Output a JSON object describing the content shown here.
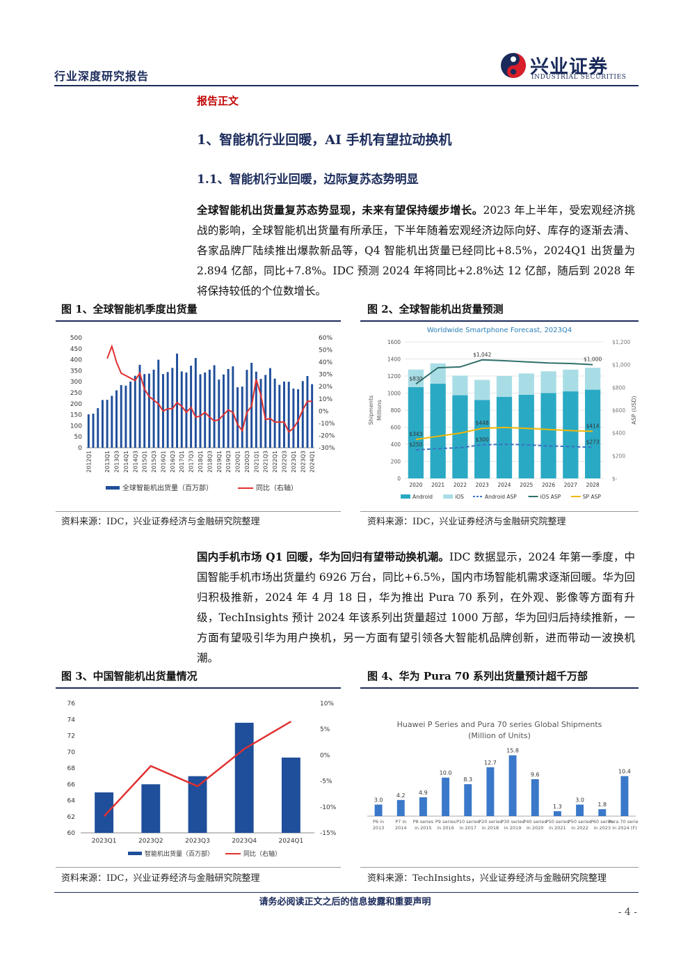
{
  "header": {
    "report_type": "行业深度研究报告",
    "logo_cn": "兴业证券",
    "logo_en": "INDUSTRIAL SECURITIES"
  },
  "section_label": "报告正文",
  "h1": "1、智能机行业回暖，AI 手机有望拉动换机",
  "h2": "1.1、智能机行业回暖，边际复苏态势明显",
  "para1": {
    "lead": "全球智能机出货量复苏态势显现，未来有望保持缓步增长。",
    "body": "2023 年上半年，受宏观经济挑战的影响，全球智能机出货量有所承压，下半年随着宏观经济边际向好、库存的逐渐去清、各家品牌厂陆续推出爆款新品等，Q4 智能机出货量已经同比+8.5%，2024Q1 出货量为 2.894 亿部，同比+7.8%。IDC 预测 2024 年将同比+2.8%达 12 亿部，随后到 2028 年将保持较低的个位数增长。"
  },
  "para2": {
    "lead": "国内手机市场 Q1 回暖，华为回归有望带动换机潮。",
    "body": "IDC 数据显示，2024 年第一季度，中国智能手机市场出货量约 6926 万台，同比+6.5%，国内市场智能机需求逐渐回暖。华为回归积极推新，2024 年 4 月 18 日，华为推出 Pura 70 系列，在外观、影像等方面有升级，TechInsights 预计 2024 年该系列出货量超过 1000 万部，华为回归后持续推新，一方面有望吸引华为用户换机，另一方面有望引领各大智能机品牌创新，进而带动一波换机潮。"
  },
  "figures": {
    "fig1": {
      "title": "图 1、全球智能机季度出货量",
      "source": "资料来源：IDC，兴业证券经济与金融研究院整理"
    },
    "fig2": {
      "title": "图 2、全球智能机出货量预测",
      "source": "资料来源：IDC，兴业证券经济与金融研究院整理"
    },
    "fig3": {
      "title": "图 3、中国智能机出货量情况",
      "source": "资料来源：IDC，兴业证券经济与金融研究院整理"
    },
    "fig4": {
      "title": "图 4、华为 Pura 70 系列出货量预计超千万部",
      "source": "资料来源：TechInsights，兴业证券经济与金融研究院整理"
    }
  },
  "footer": {
    "note": "请务必阅读正文之后的信息披露和重要声明",
    "page": "- 4 -"
  },
  "colors": {
    "navy": "#1a2a5a",
    "red": "#c00000",
    "bar_blue": "#1f4e9a",
    "line_red": "#e03030",
    "teal": "#2aa9c4",
    "light_teal": "#a9dde6",
    "bar2": "#3a78c9"
  },
  "chart_data": [
    {
      "id": "fig1",
      "type": "bar",
      "categories": [
        "2012Q1",
        "2012Q2",
        "2012Q3",
        "2012Q4",
        "2013Q1",
        "2013Q2",
        "2013Q3",
        "2013Q4",
        "2014Q1",
        "2014Q2",
        "2014Q3",
        "2014Q4",
        "2015Q1",
        "2015Q2",
        "2015Q3",
        "2015Q4",
        "2016Q1",
        "2016Q2",
        "2016Q3",
        "2016Q4",
        "2017Q1",
        "2017Q2",
        "2017Q3",
        "2017Q4",
        "2018Q1",
        "2018Q2",
        "2018Q3",
        "2018Q4",
        "2019Q1",
        "2019Q2",
        "2019Q3",
        "2019Q4",
        "2020Q1",
        "2020Q2",
        "2020Q3",
        "2020Q4",
        "2021Q1",
        "2021Q2",
        "2021Q3",
        "2021Q4",
        "2022Q1",
        "2022Q2",
        "2022Q3",
        "2022Q4",
        "2023Q1",
        "2023Q2",
        "2023Q3",
        "2023Q4",
        "2024Q1"
      ],
      "tick_labels": [
        "2012Q1",
        "2013Q1",
        "2013Q3",
        "2014Q1",
        "2014Q3",
        "2015Q1",
        "2015Q3",
        "2016Q1",
        "2016Q3",
        "2017Q1",
        "2017Q3",
        "2018Q1",
        "2018Q3",
        "2019Q1",
        "2019Q3",
        "2020Q1",
        "2020Q3",
        "2021Q1",
        "2021Q3",
        "2022Q1",
        "2022Q3",
        "2023Q1",
        "2023Q3",
        "2024Q1"
      ],
      "series": [
        {
          "name": "全球智能机出货量（百万部）",
          "axis": "left",
          "values": [
            152,
            155,
            180,
            217,
            218,
            236,
            261,
            285,
            282,
            301,
            327,
            377,
            335,
            337,
            355,
            400,
            335,
            344,
            363,
            428,
            347,
            342,
            373,
            408,
            334,
            342,
            355,
            375,
            310,
            333,
            358,
            370,
            275,
            278,
            354,
            386,
            346,
            313,
            331,
            362,
            314,
            286,
            301,
            300,
            269,
            266,
            303,
            326,
            289
          ]
        },
        {
          "name": "同比（右轴）",
          "axis": "right",
          "values": [
            null,
            null,
            null,
            null,
            43,
            53,
            40,
            31,
            29,
            27,
            25,
            31,
            18,
            12,
            9,
            6,
            0,
            2,
            2,
            7,
            4,
            -1,
            3,
            -5,
            -4,
            -1,
            -5,
            -8,
            -7,
            -3,
            1,
            -1,
            -11,
            -16,
            -1,
            4,
            26,
            13,
            -7,
            -6,
            -9,
            -9,
            -9,
            -17,
            -14,
            -8,
            1,
            8,
            8
          ]
        }
      ],
      "y_left": [
        0,
        500
      ],
      "y_right": [
        -30,
        60
      ],
      "y_left_ticks": [
        "0",
        "50",
        "100",
        "150",
        "200",
        "250",
        "300",
        "350",
        "400",
        "450",
        "500"
      ],
      "y_right_ticks": [
        "-30%",
        "-20%",
        "-10%",
        "0%",
        "10%",
        "20%",
        "30%",
        "40%",
        "50%",
        "60%"
      ]
    },
    {
      "id": "fig2",
      "type": "bar",
      "title": "Worldwide Smartphone Forecast, 2023Q4",
      "categories": [
        "2020",
        "2021",
        "2022",
        "2023",
        "2024",
        "2025",
        "2026",
        "2027",
        "2028"
      ],
      "ylabel": "Shipments",
      "ylabel2": "Millions",
      "y2label": "ASP (USD)",
      "y_left": [
        0,
        1600
      ],
      "y_right": [
        0,
        1200
      ],
      "y_left_ticks": [
        "0",
        "200",
        "400",
        "600",
        "800",
        "1000",
        "1200",
        "1400",
        "1600"
      ],
      "y_right_ticks": [
        "$-",
        "$200",
        "$400",
        "$600",
        "$800",
        "$1,000",
        "$1,200"
      ],
      "series": [
        {
          "name": "Android",
          "values": [
            1070,
            1110,
            975,
            920,
            955,
            980,
            1000,
            1020,
            1040
          ]
        },
        {
          "name": "iOS",
          "values": [
            206,
            238,
            230,
            235,
            245,
            250,
            255,
            255,
            257
          ]
        },
        {
          "name": "Android ASP",
          "values": [
            250,
            262,
            270,
            295,
            300,
            295,
            285,
            280,
            273
          ]
        },
        {
          "name": "iOS ASP",
          "values": [
            830,
            973,
            980,
            1042,
            1035,
            1025,
            1015,
            1010,
            1000
          ]
        },
        {
          "name": "SP ASP",
          "values": [
            343,
            370,
            398,
            440,
            448,
            440,
            430,
            420,
            414
          ]
        }
      ],
      "data_labels": [
        "$830",
        "$1,042",
        "$1,000",
        "$343",
        "$448",
        "$414",
        "$250",
        "$300",
        "$273"
      ]
    },
    {
      "id": "fig3",
      "type": "bar",
      "categories": [
        "2023Q1",
        "2023Q2",
        "2023Q3",
        "2023Q4",
        "2024Q1"
      ],
      "y_left": [
        60,
        76
      ],
      "y_right": [
        -15,
        10
      ],
      "y_left_ticks": [
        "60",
        "62",
        "64",
        "66",
        "68",
        "70",
        "72",
        "74",
        "76"
      ],
      "y_right_ticks": [
        "-15%",
        "-10%",
        "-5%",
        "0%",
        "5%",
        "10%"
      ],
      "series": [
        {
          "name": "智能机出货量（百万部）",
          "values": [
            65.0,
            66.0,
            67.0,
            73.6,
            69.3
          ]
        },
        {
          "name": "同比（右轴）",
          "values": [
            -11.8,
            -2.1,
            -6.0,
            1.2,
            6.5
          ]
        }
      ]
    },
    {
      "id": "fig4",
      "type": "bar",
      "title": "Huawei P Series  and Pura 70 series Global Shipments",
      "subtitle": "(Million of Units)",
      "categories": [
        "P6 in 2013",
        "P7 in 2014",
        "P8 series in 2015",
        "P9 series in 2016",
        "P10 series in 2017",
        "P20 series in 2018",
        "P30 series in 2019",
        "P40 series in 2020",
        "P50 series in 2021",
        "P50 series in 2022",
        "P60 series in 2023",
        "Pura 70 series in 2024 (F)"
      ],
      "values": [
        3.0,
        4.2,
        4.9,
        10.0,
        8.3,
        12.7,
        15.8,
        9.6,
        1.3,
        3.0,
        1.8,
        10.4
      ]
    }
  ]
}
